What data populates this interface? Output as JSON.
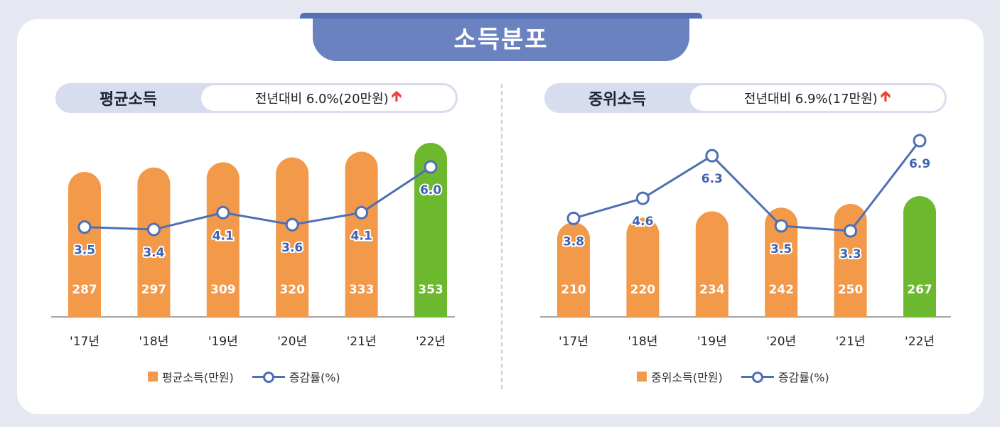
{
  "page_title": "소득분포",
  "colors": {
    "bar": "#f2994a",
    "highlight": "#6cb82e",
    "line": "#4f6fb5",
    "value_text": "#ffffff",
    "rate_text": "#3f62b0"
  },
  "chart_data": [
    {
      "type": "bar",
      "title": "평균소득",
      "summary": "전년대비 6.0%(20만원)",
      "arrow_icon": "up-arrow-icon",
      "categories": [
        "'17년",
        "'18년",
        "'19년",
        "'20년",
        "'21년",
        "'22년"
      ],
      "series": [
        {
          "name": "평균소득(만원)",
          "type": "bar",
          "values": [
            287,
            297,
            309,
            320,
            333,
            353
          ]
        },
        {
          "name": "증감률(%)",
          "type": "line",
          "values": [
            3.5,
            3.4,
            4.1,
            3.6,
            4.1,
            6.0
          ]
        }
      ],
      "legend": [
        "평균소득(만원)",
        "증감률(%)"
      ],
      "legend_position": "bottom"
    },
    {
      "type": "bar",
      "title": "중위소득",
      "summary": "전년대비 6.9%(17만원)",
      "arrow_icon": "up-arrow-icon",
      "categories": [
        "'17년",
        "'18년",
        "'19년",
        "'20년",
        "'21년",
        "'22년"
      ],
      "series": [
        {
          "name": "중위소득(만원)",
          "type": "bar",
          "values": [
            210,
            220,
            234,
            242,
            250,
            267
          ]
        },
        {
          "name": "증감률(%)",
          "type": "line",
          "values": [
            3.8,
            4.6,
            6.3,
            3.5,
            3.3,
            6.9
          ]
        }
      ],
      "legend": [
        "중위소득(만원)",
        "증감률(%)"
      ],
      "legend_position": "bottom"
    }
  ]
}
